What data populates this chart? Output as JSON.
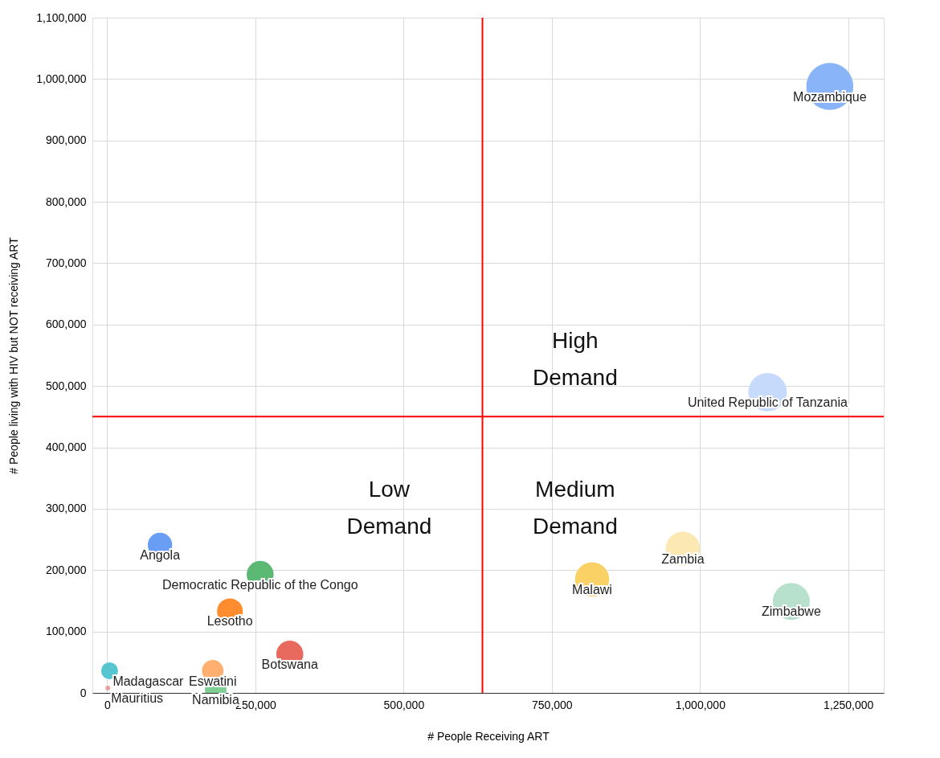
{
  "chart_data": {
    "type": "bubble",
    "xlabel": "# People Receiving ART",
    "ylabel": "# People living with HIV but NOT receiving ART",
    "xlim": [
      -25000,
      1310000
    ],
    "xticks": [
      0,
      {
        "value": 250000,
        "label": "250,000"
      },
      {
        "value": 500000,
        "label": "500,000"
      },
      {
        "value": 750000,
        "label": "750,000"
      },
      {
        "value": 1000000,
        "label": "1,000,000"
      },
      {
        "value": 1250000,
        "label": "1,250,000"
      }
    ],
    "ylim": [
      0,
      1100000
    ],
    "yticks": [
      0,
      {
        "value": 100000,
        "label": "100,000"
      },
      {
        "value": 200000,
        "label": "200,000"
      },
      {
        "value": 300000,
        "label": "300,000"
      },
      {
        "value": 400000,
        "label": "400,000"
      },
      {
        "value": 500000,
        "label": "500,000"
      },
      {
        "value": 600000,
        "label": "600,000"
      },
      {
        "value": 700000,
        "label": "700,000"
      },
      {
        "value": 800000,
        "label": "800,000"
      },
      {
        "value": 900000,
        "label": "900,000"
      },
      {
        "value": 1000000,
        "label": "1,000,000"
      },
      {
        "value": 1100000,
        "label": "1,100,000"
      }
    ],
    "grid": true,
    "marker": "circle",
    "series": [
      {
        "x": [
          1219000,
          1114000,
          1154000,
          971000,
          818000,
          89000,
          258000,
          207000,
          308000,
          178000,
          183000,
          4000,
          1000
        ],
        "values": [
          988000,
          490000,
          149000,
          235000,
          185000,
          241000,
          193000,
          133000,
          63000,
          36000,
          5000,
          36000,
          8000
        ],
        "sizes": [
          1,
          0.67,
          0.62,
          0.53,
          0.53,
          0.27,
          0.33,
          0.3,
          0.33,
          0.21,
          0.21,
          0.13,
          0.01
        ],
        "colors": [
          "#8ab4f8",
          "#c6dafc",
          "#b7e1cd",
          "#fce8b2",
          "#fad165",
          "#6a9ef5",
          "#5bb974",
          "#ff8c2e",
          "#e86a5f",
          "#ffb070",
          "#7fcf94",
          "#56c5d0",
          "#e6a0a0"
        ],
        "value_labels": [
          "Mozambique",
          "United Republic of Tanzania",
          "Zimbabwe",
          "Zambia",
          "Malawi",
          "Angola",
          "Democratic Republic of the Congo",
          "Lesotho",
          "Botswana",
          "Eswatini",
          "Namibia",
          "Madagascar",
          "Mauritius"
        ]
      }
    ],
    "ref_lines": [
      {
        "axis": "x",
        "value": 633000,
        "color": "#ff0000"
      },
      {
        "axis": "y",
        "value": 450000,
        "color": "#ff0000"
      }
    ],
    "annotations": [
      "High Demand",
      "Low Demand",
      "Medium Demand"
    ]
  }
}
